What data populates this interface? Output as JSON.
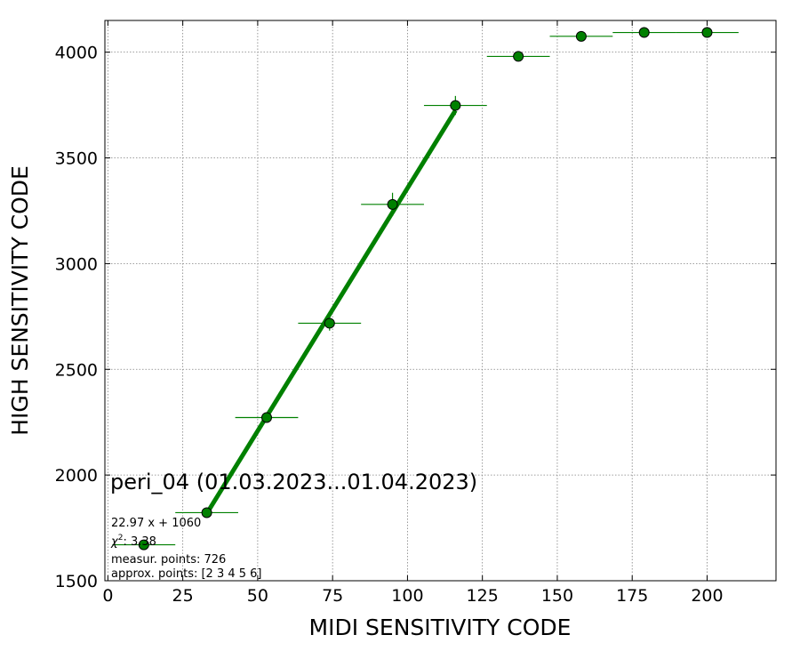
{
  "chart_data": {
    "type": "scatter",
    "xlabel": "MIDI SENSITIVITY CODE",
    "ylabel": "HIGH SENSITIVITY CODE",
    "xlim": [
      -1,
      223
    ],
    "ylim": [
      1500,
      4150
    ],
    "xticks": [
      0,
      25,
      50,
      75,
      100,
      125,
      150,
      175,
      200
    ],
    "yticks": [
      1500,
      2000,
      2500,
      3000,
      3500,
      4000
    ],
    "grid": true,
    "colors": {
      "series": "#008000",
      "marker_edge": "#000000",
      "grid": "#808080"
    },
    "series": [
      {
        "points": [
          {
            "x": 12,
            "y": 1670,
            "xerr": 10.5,
            "yerr": 0
          },
          {
            "x": 33,
            "y": 1822,
            "xerr": 10.5,
            "yerr": 15
          },
          {
            "x": 53,
            "y": 2272,
            "xerr": 10.5,
            "yerr": 25
          },
          {
            "x": 74,
            "y": 2718,
            "xerr": 10.5,
            "yerr": 35
          },
          {
            "x": 95,
            "y": 3280,
            "xerr": 10.5,
            "yerr": 55
          },
          {
            "x": 116,
            "y": 3748,
            "xerr": 10.5,
            "yerr": 45
          },
          {
            "x": 137,
            "y": 3980,
            "xerr": 10.5,
            "yerr": 20
          },
          {
            "x": 158,
            "y": 4075,
            "xerr": 10.5,
            "yerr": 10
          },
          {
            "x": 179,
            "y": 4093,
            "xerr": 10.5,
            "yerr": 5
          },
          {
            "x": 200,
            "y": 4093,
            "xerr": 10.5,
            "yerr": 5
          }
        ]
      }
    ],
    "fit_line": {
      "slope": 22.97,
      "intercept": 1060,
      "x_range": [
        33,
        116
      ]
    },
    "annotations": {
      "title": "peri_04 (01.03.2023...01.04.2023)",
      "fit_text": "22.97 x + 1060",
      "chi_prefix": "χ",
      "chi_sup": "2",
      "chi_value": ": 3.38",
      "points_text": "measur. points: 726",
      "approx_text": "approx. points: [2 3 4 5 6]"
    }
  }
}
